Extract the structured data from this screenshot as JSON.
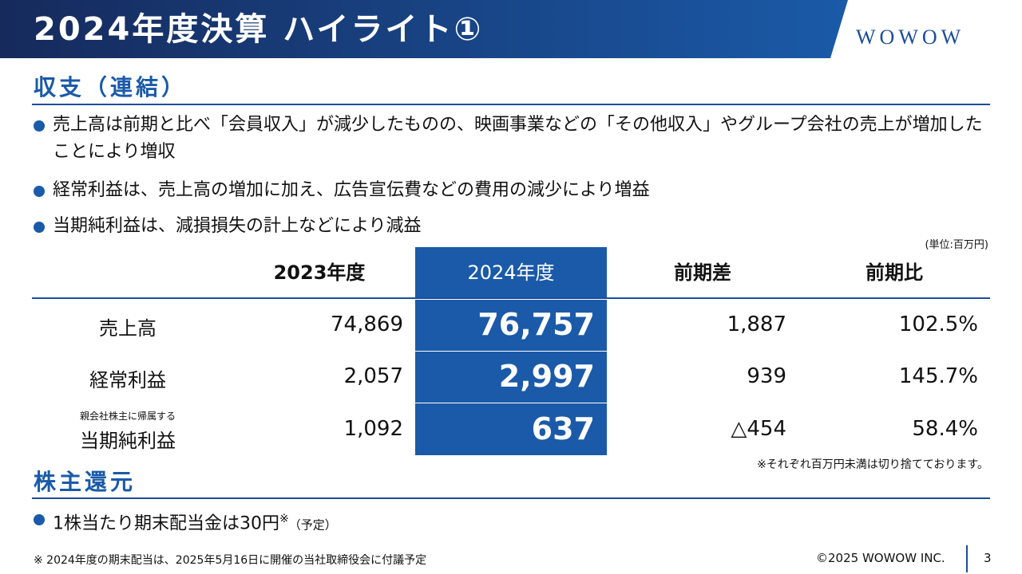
{
  "header": {
    "title": "2024年度決算 ハイライト①",
    "logo": "WOWOW"
  },
  "section1": {
    "heading": "収支（連結）",
    "bullets": [
      "売上高は前期と比べ「会員収入」が減少したものの、映画事業などの「その他収入」やグループ会社の売上が増加したことにより増収",
      "経常利益は、売上高の増加に加え、広告宣伝費などの費用の減少により増益",
      "当期純利益は、減損損失の計上などにより減益"
    ]
  },
  "table": {
    "unit": "(単位:百万円)",
    "columns": [
      "2023年度",
      "2024年度",
      "前期差",
      "前期比"
    ],
    "rows": [
      {
        "label": "売上高",
        "cells": [
          "74,869",
          "76,757",
          "1,887",
          "102.5%"
        ]
      },
      {
        "label": "経常利益",
        "cells": [
          "2,057",
          "2,997",
          "939",
          "145.7%"
        ]
      },
      {
        "sublabel": "親会社株主に帰属する",
        "label": "当期純利益",
        "cells": [
          "1,092",
          "637",
          "△454",
          "58.4%"
        ]
      }
    ],
    "note": "※それぞれ百万円未満は切り捨てております。"
  },
  "section2": {
    "heading": "株主還元",
    "bullet": "1株当たり期末配当金は30円",
    "mark": "※",
    "suffix": "（予定）"
  },
  "footer": {
    "note": "※ 2024年度の期末配当は、2025年5月16日に開催の当社取締役会に付議予定",
    "copyright": "©2025 WOWOW INC.",
    "page": "3"
  }
}
